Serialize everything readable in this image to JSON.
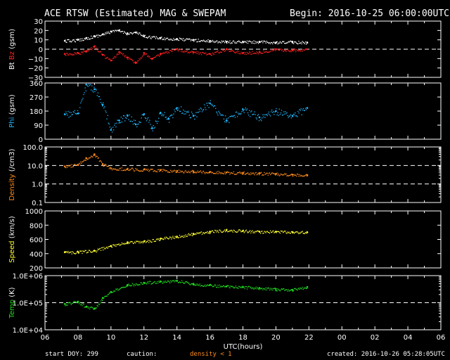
{
  "header": {
    "title": "ACE RTSW (Estimated) MAG & SWEPAM",
    "begin": "Begin: 2016-10-25 06:00:00UTC"
  },
  "footer": {
    "start_doy": "start DOY: 299",
    "caution": "caution:",
    "density_note": "density < 1",
    "created": "created: 2016-10-26 05:28:05UTC"
  },
  "colors": {
    "bt": "#ffffff",
    "bz": "#ff2020",
    "phi": "#20b8ff",
    "density": "#ff8c1a",
    "speed": "#ffff33",
    "temp": "#20dd20",
    "axis": "#ffffff",
    "background": "#000000"
  },
  "chart_data": {
    "type": "scatter",
    "x_label": "UTC(hours)",
    "x_ticks": [
      "06",
      "08",
      "10",
      "12",
      "14",
      "16",
      "18",
      "20",
      "22",
      "00",
      "02",
      "04",
      "06"
    ],
    "x_range": [
      6,
      30
    ],
    "panels": [
      {
        "id": "mag",
        "ylabel_parts": [
          "Bt",
          "Bz",
          "(gsm)"
        ],
        "ylim": [
          -30,
          30
        ],
        "yticks": [
          "30",
          "20",
          "10",
          "0",
          "−10",
          "−20",
          "−30"
        ],
        "ytick_values": [
          30,
          20,
          10,
          0,
          -10,
          -20,
          -30
        ],
        "dashed_refs": [
          0
        ],
        "series": [
          {
            "name": "Bt",
            "color": "bt",
            "x": [
              7.2,
              8,
              8.5,
              9,
              9.5,
              10,
              10.5,
              11,
              11.5,
              12,
              13,
              14,
              15,
              16,
              17,
              18,
              19,
              20,
              21,
              21.9
            ],
            "y": [
              9,
              10,
              12,
              14,
              16,
              19,
              20,
              17,
              18,
              14,
              12,
              11,
              10,
              9,
              8,
              8,
              8,
              7,
              8,
              7
            ]
          },
          {
            "name": "Bz",
            "color": "bz",
            "x": [
              7.2,
              8,
              8.5,
              9,
              9.5,
              10,
              10.5,
              11,
              11.5,
              12,
              12.5,
              13,
              14,
              15,
              16,
              17,
              18,
              19,
              20,
              21,
              21.9
            ],
            "y": [
              -5,
              -4,
              -2,
              3,
              -6,
              -12,
              -3,
              -9,
              -14,
              -4,
              -10,
              -5,
              0,
              -3,
              -5,
              0,
              -4,
              -3,
              0,
              -1,
              0
            ]
          }
        ]
      },
      {
        "id": "phi",
        "ylabel_parts": [
          "Phi",
          "(gsm)"
        ],
        "ylim": [
          0,
          360
        ],
        "yticks": [
          "360",
          "270",
          "180",
          "90",
          "0"
        ],
        "ytick_values": [
          360,
          270,
          180,
          90,
          0
        ],
        "dashed_refs": [],
        "series": [
          {
            "name": "Phi",
            "color": "phi",
            "x": [
              7.2,
              8,
              8.5,
              9,
              9.5,
              10,
              10.5,
              11,
              11.5,
              12,
              12.5,
              13,
              13.5,
              14,
              15,
              16,
              17,
              18,
              19,
              20,
              21,
              21.9
            ],
            "y": [
              160,
              165,
              350,
              320,
              220,
              60,
              120,
              150,
              95,
              160,
              70,
              170,
              130,
              200,
              150,
              230,
              120,
              190,
              140,
              180,
              150,
              200
            ]
          }
        ]
      },
      {
        "id": "density",
        "ylabel_parts": [
          "Density",
          "(/cm3)"
        ],
        "ylim": [
          0.1,
          100
        ],
        "log": true,
        "yticks": [
          "100.0",
          "10.0",
          "1.0",
          "0.1"
        ],
        "ytick_values": [
          100,
          10,
          1,
          0.1
        ],
        "dashed_refs": [
          10,
          1
        ],
        "series": [
          {
            "name": "Density",
            "color": "density",
            "x": [
              7.2,
              8,
              8.5,
              9,
              9.5,
              10,
              11,
              12,
              13,
              14,
              15,
              16,
              17,
              18,
              19,
              20,
              21,
              21.9
            ],
            "y": [
              9,
              11,
              25,
              40,
              12,
              7,
              6.5,
              6,
              5.5,
              5,
              4.8,
              4.5,
              4.2,
              4,
              3.8,
              3.5,
              3.2,
              3
            ]
          }
        ]
      },
      {
        "id": "speed",
        "ylabel_parts": [
          "Speed",
          "(km/s)"
        ],
        "ylim": [
          200,
          1000
        ],
        "yticks": [
          "1000",
          "800",
          "600",
          "400",
          "200"
        ],
        "ytick_values": [
          1000,
          800,
          600,
          400,
          200
        ],
        "dashed_refs": [],
        "series": [
          {
            "name": "Speed",
            "color": "speed",
            "x": [
              7.2,
              8,
              9,
              10,
              11,
              12,
              13,
              14,
              15,
              16,
              17,
              18,
              19,
              20,
              21,
              21.9
            ],
            "y": [
              420,
              425,
              440,
              510,
              560,
              570,
              610,
              640,
              680,
              710,
              730,
              720,
              710,
              710,
              705,
              700
            ]
          }
        ]
      },
      {
        "id": "temp",
        "ylabel_parts": [
          "Temp",
          "(K)"
        ],
        "ylim": [
          10000,
          1000000
        ],
        "log": true,
        "yticks": [
          "1.0E+06",
          "1.0E+05",
          "1.0E+04"
        ],
        "ytick_values": [
          1000000,
          100000,
          10000
        ],
        "dashed_refs": [
          100000
        ],
        "series": [
          {
            "name": "Temp",
            "color": "temp",
            "x": [
              7.2,
              8,
              8.5,
              9,
              9.5,
              10,
              11,
              12,
              13,
              14,
              15,
              16,
              17,
              18,
              19,
              20,
              21,
              21.9
            ],
            "y": [
              90000,
              110000,
              70000,
              60000,
              150000,
              250000,
              450000,
              550000,
              600000,
              650000,
              500000,
              450000,
              400000,
              380000,
              350000,
              320000,
              300000,
              380000
            ]
          }
        ]
      }
    ]
  }
}
